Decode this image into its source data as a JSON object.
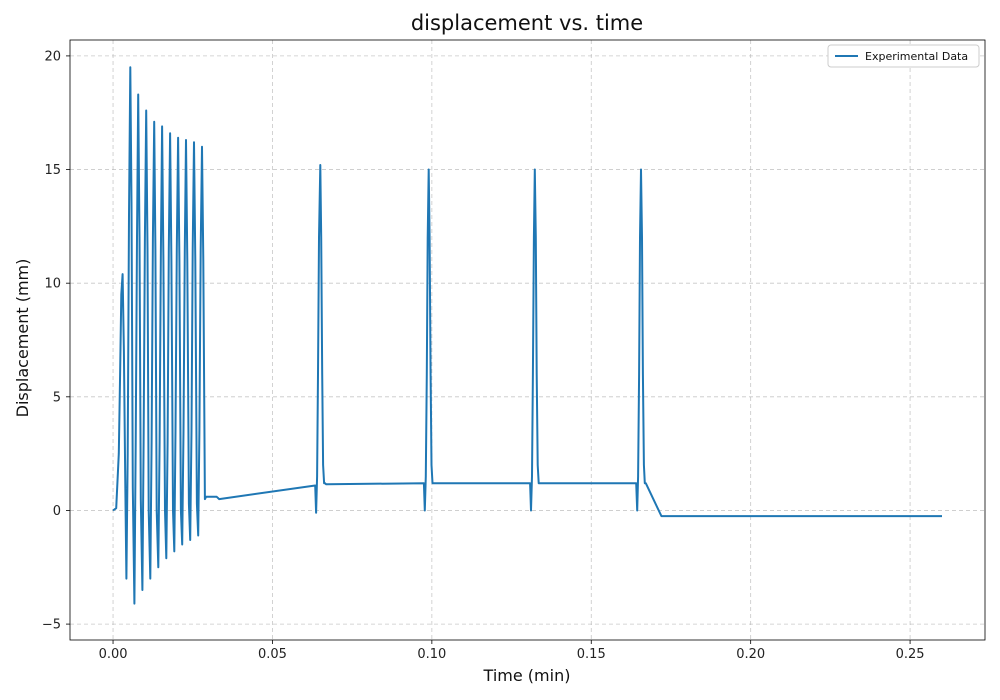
{
  "chart_data": {
    "type": "line",
    "title": "displacement vs. time",
    "xlabel": "Time (min)",
    "ylabel": "Displacement (mm)",
    "xlim": [
      -0.0135,
      0.2735
    ],
    "ylim": [
      -5.7,
      20.7
    ],
    "x_ticks": [
      0.0,
      0.05,
      0.1,
      0.15,
      0.2,
      0.25
    ],
    "x_tick_labels": [
      "0.00",
      "0.05",
      "0.10",
      "0.15",
      "0.20",
      "0.25"
    ],
    "y_ticks": [
      -5,
      0,
      5,
      10,
      15,
      20
    ],
    "y_tick_labels": [
      "−5",
      "0",
      "5",
      "10",
      "15",
      "20"
    ],
    "grid": true,
    "grid_style": "dashed",
    "legend_position": "top-right",
    "series": [
      {
        "name": "Experimental Data",
        "color": "#1f77b4",
        "x": [
          0.0,
          0.001,
          0.0018,
          0.0022,
          0.0026,
          0.003,
          0.0034,
          0.0038,
          0.0042,
          0.0046,
          0.005,
          0.0054,
          0.0058,
          0.0062,
          0.0067,
          0.0071,
          0.0075,
          0.0079,
          0.0083,
          0.0087,
          0.0092,
          0.0096,
          0.01,
          0.0104,
          0.0108,
          0.0112,
          0.0117,
          0.0121,
          0.0125,
          0.0129,
          0.0133,
          0.0137,
          0.0142,
          0.0146,
          0.015,
          0.0154,
          0.0158,
          0.0163,
          0.0167,
          0.0171,
          0.0175,
          0.0179,
          0.0183,
          0.0188,
          0.0192,
          0.0196,
          0.02,
          0.0204,
          0.0208,
          0.0213,
          0.0217,
          0.0221,
          0.0225,
          0.0229,
          0.0233,
          0.0238,
          0.0242,
          0.0246,
          0.025,
          0.0254,
          0.0258,
          0.0263,
          0.0267,
          0.0271,
          0.0275,
          0.0279,
          0.0283,
          0.0288,
          0.0292,
          0.0296,
          0.03,
          0.0304,
          0.0308,
          0.0313,
          0.0317,
          0.0321,
          0.0325,
          0.0333,
          0.0634,
          0.0637,
          0.064,
          0.0643,
          0.0646,
          0.065,
          0.0653,
          0.0656,
          0.0659,
          0.0662,
          0.0665,
          0.0668,
          0.0672,
          0.0975,
          0.0978,
          0.0981,
          0.0984,
          0.0987,
          0.099,
          0.0993,
          0.0996,
          0.0999,
          0.1002,
          0.1005,
          0.1308,
          0.1311,
          0.1314,
          0.1317,
          0.132,
          0.1323,
          0.1326,
          0.1329,
          0.1332,
          0.1335,
          0.1338,
          0.1641,
          0.1644,
          0.1647,
          0.165,
          0.1653,
          0.1656,
          0.1659,
          0.1662,
          0.1665,
          0.1668,
          0.1671,
          0.172,
          0.18,
          0.19,
          0.2,
          0.21,
          0.22,
          0.23,
          0.24,
          0.25,
          0.26
        ],
        "y": [
          0.0,
          0.1,
          2.5,
          6.0,
          9.5,
          10.4,
          7.0,
          1.5,
          -3.0,
          2.5,
          13.0,
          19.5,
          13.5,
          1.0,
          -4.1,
          3.0,
          12.0,
          18.3,
          12.0,
          0.5,
          -3.5,
          3.0,
          12.0,
          17.6,
          11.5,
          0.0,
          -3.0,
          3.0,
          12.0,
          17.1,
          11.5,
          0.0,
          -2.5,
          3.0,
          11.5,
          16.9,
          11.0,
          0.0,
          -2.1,
          3.0,
          11.5,
          16.6,
          11.0,
          0.0,
          -1.8,
          3.5,
          11.5,
          16.4,
          11.0,
          0.0,
          -1.5,
          3.5,
          11.5,
          16.3,
          11.0,
          0.3,
          -1.3,
          3.5,
          11.5,
          16.2,
          11.0,
          0.3,
          -1.1,
          3.5,
          11.5,
          16.0,
          11.0,
          0.5,
          0.6,
          0.6,
          0.6,
          0.6,
          0.6,
          0.6,
          0.6,
          0.6,
          0.6,
          0.5,
          1.1,
          -0.1,
          1.5,
          6.0,
          12.0,
          15.2,
          12.0,
          6.0,
          2.0,
          1.2,
          1.2,
          1.15,
          1.15,
          1.2,
          0.0,
          1.5,
          6.0,
          12.0,
          15.0,
          12.0,
          6.0,
          2.0,
          1.2,
          1.2,
          1.2,
          0.0,
          1.5,
          6.0,
          12.0,
          15.0,
          12.0,
          6.0,
          2.0,
          1.2,
          1.2,
          1.2,
          0.0,
          1.5,
          6.0,
          12.0,
          15.0,
          12.0,
          6.0,
          2.0,
          1.2,
          1.2,
          -0.25,
          -0.25,
          -0.25,
          -0.25,
          -0.25,
          -0.25,
          -0.25,
          -0.25,
          -0.25,
          -0.25
        ]
      }
    ]
  }
}
